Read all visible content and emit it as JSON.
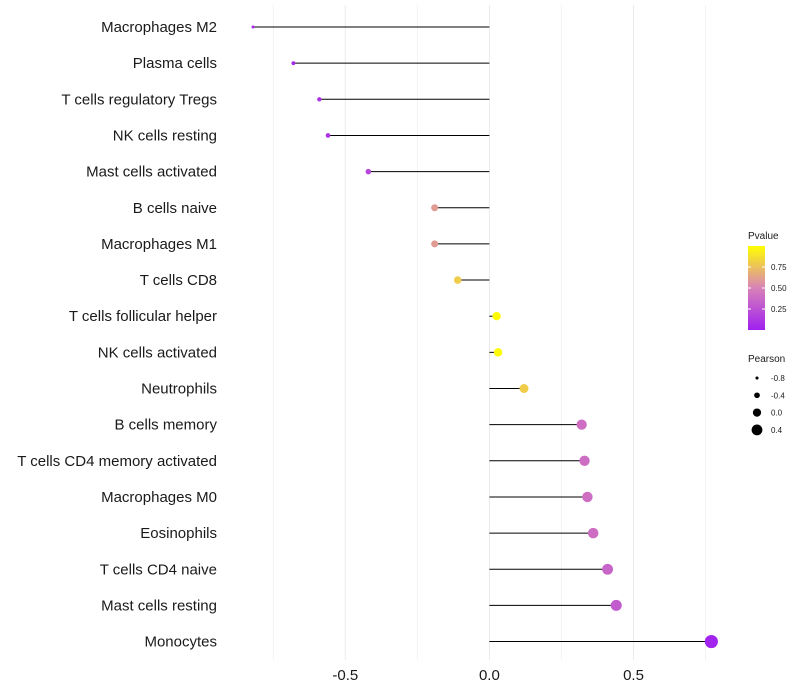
{
  "chart_data": {
    "type": "lollipop",
    "categories": [
      "Macrophages M2",
      "Plasma cells",
      "T cells regulatory  Tregs",
      "NK cells resting",
      "Mast cells activated",
      "B cells naive",
      "Macrophages M1",
      "T cells CD8",
      "T cells follicular helper",
      "NK cells activated",
      "Neutrophils",
      "B cells memory",
      "T cells CD4 memory activated",
      "Macrophages M0",
      "Eosinophils",
      "T cells CD4 naive",
      "Mast cells resting",
      "Monocytes"
    ],
    "values": [
      -0.82,
      -0.68,
      -0.59,
      -0.56,
      -0.42,
      -0.19,
      -0.19,
      -0.11,
      0.025,
      0.03,
      0.12,
      0.32,
      0.33,
      0.34,
      0.36,
      0.41,
      0.44,
      0.77
    ],
    "pvalues": [
      0.05,
      0.05,
      0.1,
      0.1,
      0.2,
      0.6,
      0.6,
      0.8,
      0.98,
      0.98,
      0.8,
      0.4,
      0.4,
      0.4,
      0.4,
      0.35,
      0.3,
      0.02
    ],
    "xlim": [
      -0.9,
      0.8
    ],
    "x_ticks": [
      -0.5,
      0.0,
      0.5
    ],
    "x_tick_labels": [
      "-0.5",
      "0.0",
      "0.5"
    ],
    "legend_pvalue": {
      "title": "Pvalue",
      "range": [
        0.0,
        1.0
      ],
      "color_low": "#a020f0",
      "color_mid": "#d882b8",
      "color_high": "#ffff00",
      "breaks": [
        0.75,
        0.5,
        0.25
      ],
      "labels": [
        "0.75",
        "0.50",
        "0.25"
      ]
    },
    "legend_pearson": {
      "title": "Pearson",
      "breaks": [
        -0.8,
        -0.4,
        0.0,
        0.4
      ],
      "labels": [
        "-0.8",
        "-0.4",
        "0.0",
        "0.4"
      ]
    },
    "colors": {
      "segment": "#000000",
      "grid": "#ebebeb",
      "background": "#ffffff"
    }
  }
}
